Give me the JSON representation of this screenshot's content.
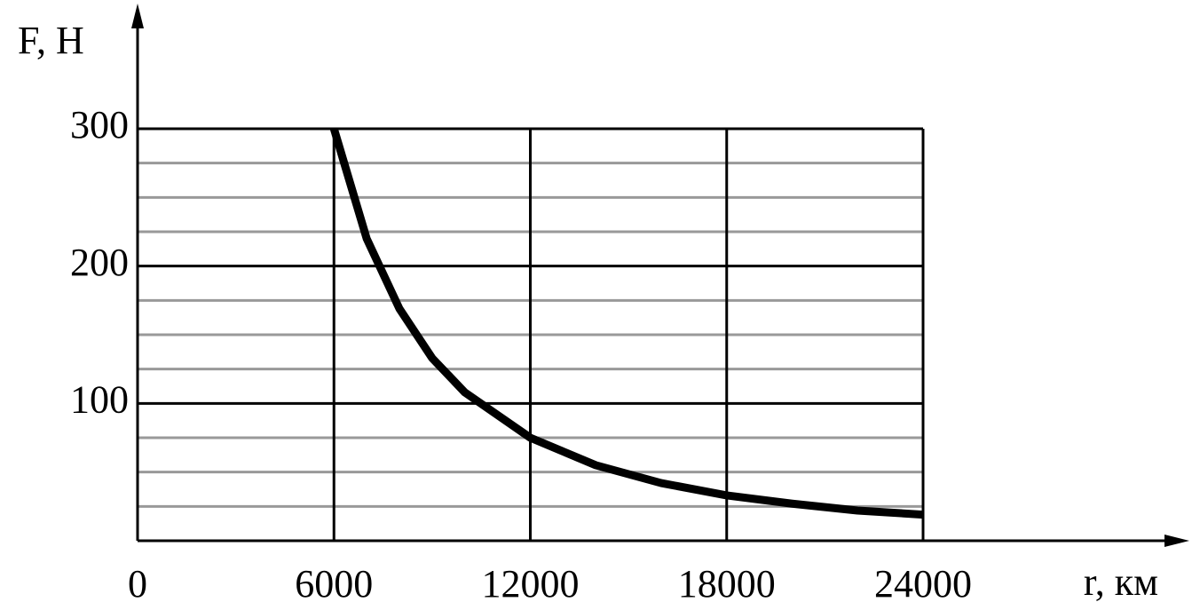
{
  "chart_data": {
    "type": "line",
    "x_label": "r, км",
    "y_label": "F, Н",
    "x": [
      6000,
      7000,
      8000,
      9000,
      10000,
      12000,
      14000,
      16000,
      18000,
      20000,
      22000,
      24000
    ],
    "series": [
      {
        "color": "#000000",
        "values": [
          300,
          220,
          169,
          133,
          108,
          75,
          55,
          42,
          33,
          27,
          22,
          19
        ]
      }
    ],
    "xlim": [
      0,
      24000
    ],
    "ylim": [
      0,
      300
    ],
    "xticks": [
      0,
      6000,
      12000,
      18000,
      24000
    ],
    "yticks": [
      100,
      200,
      300
    ],
    "minor_yticks": [
      25,
      50,
      75,
      125,
      150,
      175,
      225,
      250,
      275
    ],
    "grid": true
  }
}
